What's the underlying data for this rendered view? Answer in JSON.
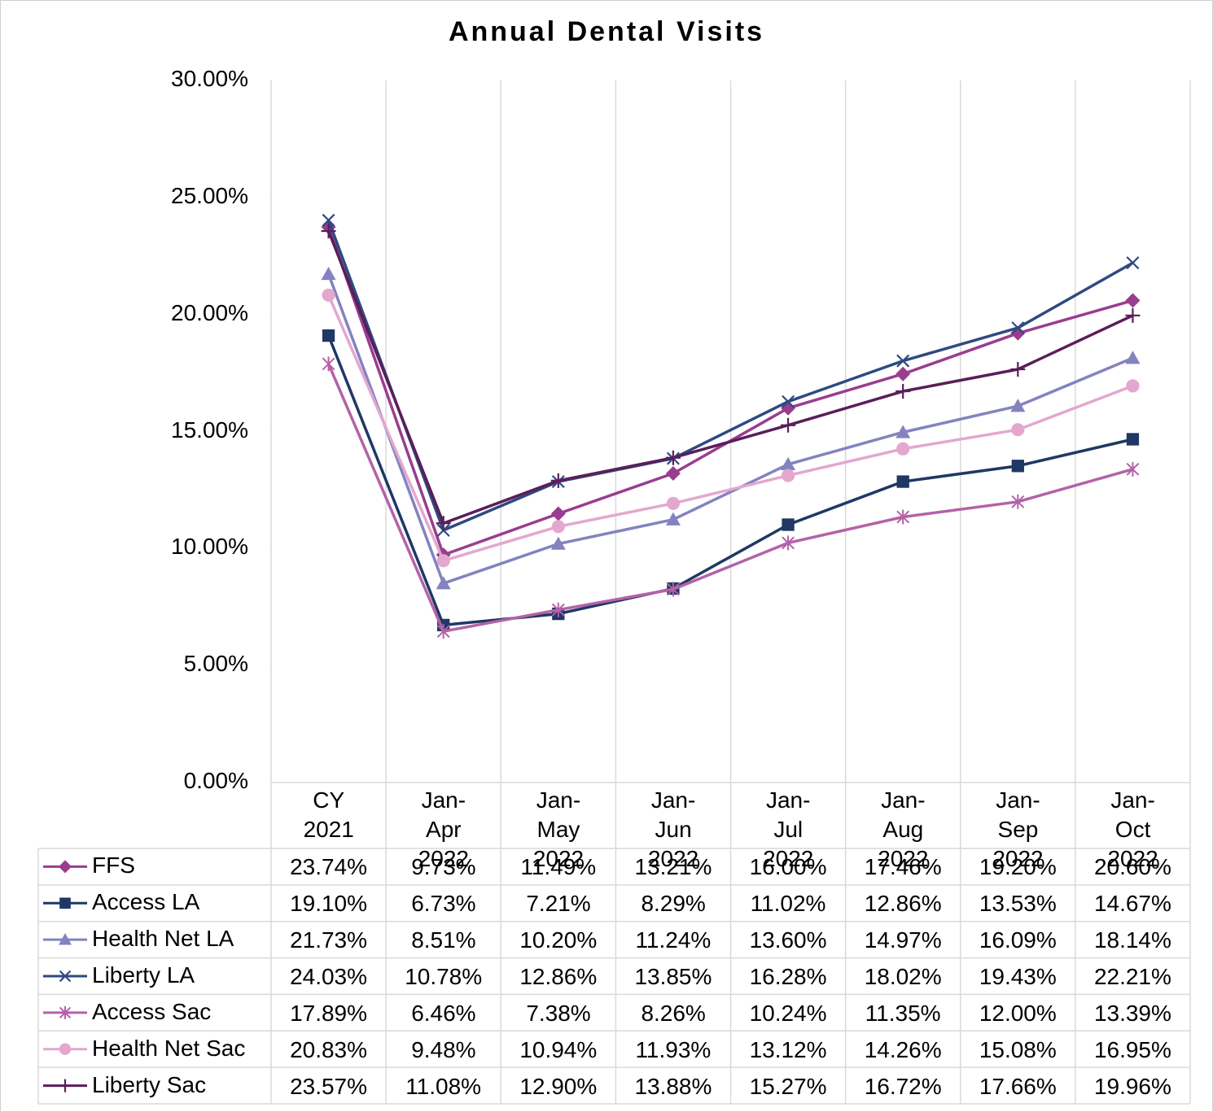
{
  "chart_data": {
    "type": "line",
    "title": "Annual Dental Visits",
    "categories": [
      "CY 2021",
      "Jan-Apr 2022",
      "Jan-May 2022",
      "Jan-Jun 2022",
      "Jan-Jul 2022",
      "Jan-Aug 2022",
      "Jan-Sep 2022",
      "Jan-Oct 2022"
    ],
    "ylim": [
      0,
      30
    ],
    "yticks": [
      {
        "value": 0,
        "label": "0.00%"
      },
      {
        "value": 5,
        "label": "5.00%"
      },
      {
        "value": 10,
        "label": "10.00%"
      },
      {
        "value": 15,
        "label": "15.00%"
      },
      {
        "value": 20,
        "label": "20.00%"
      },
      {
        "value": 25,
        "label": "25.00%"
      },
      {
        "value": 30,
        "label": "30.00%"
      }
    ],
    "grid": "vertical",
    "series": [
      {
        "name": "FFS",
        "color": "#993d8f",
        "marker": "diamond",
        "values": [
          23.74,
          9.73,
          11.49,
          13.21,
          16.0,
          17.46,
          19.2,
          20.6
        ],
        "value_labels": [
          "23.74%",
          "9.73%",
          "11.49%",
          "13.21%",
          "16.00%",
          "17.46%",
          "19.20%",
          "20.60%"
        ]
      },
      {
        "name": "Access LA",
        "color": "#1f3864",
        "marker": "square",
        "values": [
          19.1,
          6.73,
          7.21,
          8.29,
          11.02,
          12.86,
          13.53,
          14.67
        ],
        "value_labels": [
          "19.10%",
          "6.73%",
          "7.21%",
          "8.29%",
          "11.02%",
          "12.86%",
          "13.53%",
          "14.67%"
        ]
      },
      {
        "name": "Health Net LA",
        "color": "#8383c0",
        "marker": "triangle",
        "values": [
          21.73,
          8.51,
          10.2,
          11.24,
          13.6,
          14.97,
          16.09,
          18.14
        ],
        "value_labels": [
          "21.73%",
          "8.51%",
          "10.20%",
          "11.24%",
          "13.60%",
          "14.97%",
          "16.09%",
          "18.14%"
        ]
      },
      {
        "name": "Liberty LA",
        "color": "#2e4a80",
        "marker": "x",
        "values": [
          24.03,
          10.78,
          12.86,
          13.85,
          16.28,
          18.02,
          19.43,
          22.21
        ],
        "value_labels": [
          "24.03%",
          "10.78%",
          "12.86%",
          "13.85%",
          "16.28%",
          "18.02%",
          "19.43%",
          "22.21%"
        ]
      },
      {
        "name": "Access Sac",
        "color": "#b462a8",
        "marker": "star",
        "values": [
          17.89,
          6.46,
          7.38,
          8.26,
          10.24,
          11.35,
          12.0,
          13.39
        ],
        "value_labels": [
          "17.89%",
          "6.46%",
          "7.38%",
          "8.26%",
          "10.24%",
          "11.35%",
          "12.00%",
          "13.39%"
        ]
      },
      {
        "name": "Health Net Sac",
        "color": "#e3a7d0",
        "marker": "circle",
        "values": [
          20.83,
          9.48,
          10.94,
          11.93,
          13.12,
          14.26,
          15.08,
          16.95
        ],
        "value_labels": [
          "20.83%",
          "9.48%",
          "10.94%",
          "11.93%",
          "13.12%",
          "14.26%",
          "15.08%",
          "16.95%"
        ]
      },
      {
        "name": "Liberty Sac",
        "color": "#5a1e5a",
        "marker": "plus",
        "values": [
          23.57,
          11.08,
          12.9,
          13.88,
          15.27,
          16.72,
          17.66,
          19.96
        ],
        "value_labels": [
          "23.57%",
          "11.08%",
          "12.90%",
          "13.88%",
          "15.27%",
          "16.72%",
          "17.66%",
          "19.96%"
        ]
      }
    ]
  }
}
